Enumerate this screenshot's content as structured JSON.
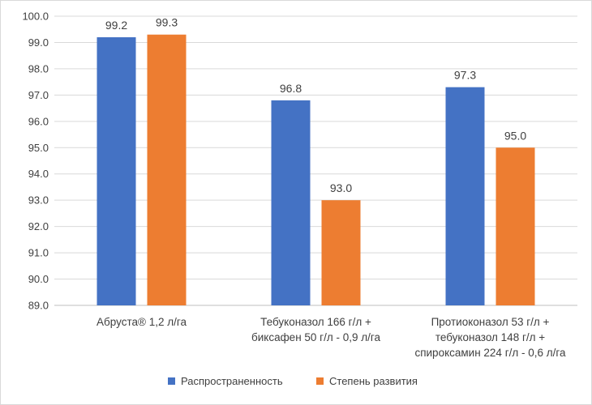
{
  "chart_data": {
    "type": "bar",
    "categories": [
      [
        "Абруста® 1,2 л/га"
      ],
      [
        "Тебуконазол 166 г/л +",
        "биксафен 50 г/л - 0,9 л/га"
      ],
      [
        "Протиоконазол 53 г/л +",
        "тебуконазол 148 г/л +",
        "спироксамин 224 г/л - 0,6 л/га"
      ]
    ],
    "series": [
      {
        "name": "Распространенность",
        "color": "#4472c4",
        "values": [
          99.2,
          96.8,
          97.3
        ],
        "labels": [
          "99.2",
          "96.8",
          "97.3"
        ]
      },
      {
        "name": "Степень развития",
        "color": "#ed7d31",
        "values": [
          99.3,
          93.0,
          95.0
        ],
        "labels": [
          "99.3",
          "93.0",
          "95.0"
        ]
      }
    ],
    "y_ticks": [
      "89.0",
      "90.0",
      "91.0",
      "92.0",
      "93.0",
      "94.0",
      "95.0",
      "96.0",
      "97.0",
      "98.0",
      "99.0",
      "100.0"
    ],
    "ylim": [
      89.0,
      100.0
    ],
    "grid": true,
    "legend": "bottom",
    "title": "",
    "xlabel": "",
    "ylabel": ""
  }
}
